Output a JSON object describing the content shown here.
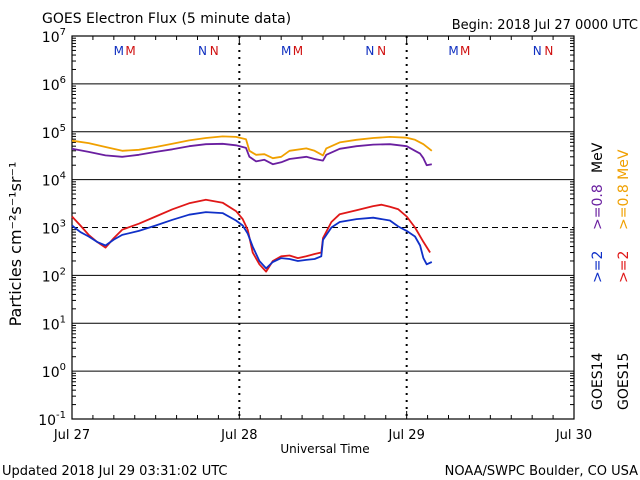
{
  "chart_data": {
    "type": "line",
    "title": "GOES Electron Flux (5 minute data)",
    "begin_label": "Begin: 2018 Jul 27 0000 UTC",
    "xlabel": "Universal Time",
    "ylabel": "Particles cm⁻²s⁻¹sr⁻¹",
    "y_scale": "log",
    "ylim": [
      0.1,
      10000000
    ],
    "y_ticks": [
      {
        "base": "10",
        "exp": "7"
      },
      {
        "base": "10",
        "exp": "6"
      },
      {
        "base": "10",
        "exp": "5"
      },
      {
        "base": "10",
        "exp": "4"
      },
      {
        "base": "10",
        "exp": "3"
      },
      {
        "base": "10",
        "exp": "2"
      },
      {
        "base": "10",
        "exp": "1"
      },
      {
        "base": "10",
        "exp": "0"
      },
      {
        "base": "10",
        "exp": "-1"
      }
    ],
    "x_unit": "days since 2018 Jul 27 0000 UTC",
    "xlim": [
      0,
      3
    ],
    "x_ticks": [
      "Jul 27",
      "Jul 28",
      "Jul 29",
      "Jul 30"
    ],
    "reference_level": 1000,
    "markers": [
      {
        "label": "M",
        "color": "#1030c0",
        "x": 0.28
      },
      {
        "label": "M",
        "color": "#d01010",
        "x": 0.35
      },
      {
        "label": "N",
        "color": "#1030c0",
        "x": 0.78
      },
      {
        "label": "N",
        "color": "#d01010",
        "x": 0.85
      },
      {
        "label": "M",
        "color": "#1030c0",
        "x": 1.28
      },
      {
        "label": "M",
        "color": "#d01010",
        "x": 1.35
      },
      {
        "label": "N",
        "color": "#1030c0",
        "x": 1.78
      },
      {
        "label": "N",
        "color": "#d01010",
        "x": 1.85
      },
      {
        "label": "M",
        "color": "#1030c0",
        "x": 2.28
      },
      {
        "label": "M",
        "color": "#d01010",
        "x": 2.35
      },
      {
        "label": "N",
        "color": "#1030c0",
        "x": 2.78
      },
      {
        "label": "N",
        "color": "#d01010",
        "x": 2.85
      }
    ],
    "series": [
      {
        "name": "GOES15 >=0.8 MeV",
        "color": "#f0a000",
        "points": [
          [
            0,
            65000
          ],
          [
            0.1,
            58000
          ],
          [
            0.2,
            48000
          ],
          [
            0.3,
            40000
          ],
          [
            0.4,
            42000
          ],
          [
            0.5,
            48000
          ],
          [
            0.6,
            56000
          ],
          [
            0.7,
            66000
          ],
          [
            0.8,
            74000
          ],
          [
            0.9,
            80000
          ],
          [
            0.98,
            78000
          ],
          [
            1.04,
            70000
          ],
          [
            1.06,
            40000
          ],
          [
            1.1,
            33000
          ],
          [
            1.15,
            34000
          ],
          [
            1.2,
            28000
          ],
          [
            1.25,
            30000
          ],
          [
            1.3,
            40000
          ],
          [
            1.4,
            45000
          ],
          [
            1.45,
            40000
          ],
          [
            1.5,
            32000
          ],
          [
            1.52,
            45000
          ],
          [
            1.6,
            60000
          ],
          [
            1.7,
            68000
          ],
          [
            1.8,
            74000
          ],
          [
            1.9,
            78000
          ],
          [
            2.0,
            75000
          ],
          [
            2.05,
            68000
          ],
          [
            2.1,
            55000
          ],
          [
            2.15,
            40000
          ]
        ]
      },
      {
        "name": "GOES14 >=0.8 MeV",
        "color": "#6a1fa0",
        "points": [
          [
            0,
            44000
          ],
          [
            0.1,
            38000
          ],
          [
            0.2,
            32000
          ],
          [
            0.3,
            30000
          ],
          [
            0.4,
            33000
          ],
          [
            0.5,
            38000
          ],
          [
            0.6,
            43000
          ],
          [
            0.7,
            50000
          ],
          [
            0.8,
            55000
          ],
          [
            0.9,
            56000
          ],
          [
            0.98,
            52000
          ],
          [
            1.04,
            46000
          ],
          [
            1.06,
            30000
          ],
          [
            1.1,
            24000
          ],
          [
            1.15,
            26000
          ],
          [
            1.2,
            21000
          ],
          [
            1.25,
            23000
          ],
          [
            1.3,
            27000
          ],
          [
            1.4,
            30000
          ],
          [
            1.45,
            27000
          ],
          [
            1.5,
            25000
          ],
          [
            1.52,
            33000
          ],
          [
            1.6,
            44000
          ],
          [
            1.7,
            50000
          ],
          [
            1.8,
            54000
          ],
          [
            1.9,
            55000
          ],
          [
            2.0,
            50000
          ],
          [
            2.05,
            40000
          ],
          [
            2.08,
            35000
          ],
          [
            2.1,
            28000
          ],
          [
            2.12,
            20000
          ],
          [
            2.15,
            21000
          ]
        ]
      },
      {
        "name": "GOES15 >=2 MeV",
        "color": "#e01818",
        "points": [
          [
            0,
            1700
          ],
          [
            0.05,
            1100
          ],
          [
            0.1,
            700
          ],
          [
            0.15,
            500
          ],
          [
            0.2,
            380
          ],
          [
            0.25,
            600
          ],
          [
            0.3,
            900
          ],
          [
            0.4,
            1200
          ],
          [
            0.5,
            1700
          ],
          [
            0.6,
            2400
          ],
          [
            0.7,
            3200
          ],
          [
            0.8,
            3800
          ],
          [
            0.9,
            3300
          ],
          [
            0.98,
            2200
          ],
          [
            1.02,
            1500
          ],
          [
            1.05,
            900
          ],
          [
            1.08,
            300
          ],
          [
            1.12,
            170
          ],
          [
            1.16,
            120
          ],
          [
            1.2,
            200
          ],
          [
            1.25,
            250
          ],
          [
            1.3,
            260
          ],
          [
            1.35,
            230
          ],
          [
            1.4,
            250
          ],
          [
            1.45,
            280
          ],
          [
            1.49,
            300
          ],
          [
            1.5,
            600
          ],
          [
            1.55,
            1300
          ],
          [
            1.6,
            1900
          ],
          [
            1.7,
            2300
          ],
          [
            1.8,
            2800
          ],
          [
            1.85,
            3000
          ],
          [
            1.9,
            2700
          ],
          [
            1.95,
            2400
          ],
          [
            2.0,
            1700
          ],
          [
            2.05,
            1000
          ],
          [
            2.1,
            500
          ],
          [
            2.14,
            300
          ]
        ]
      },
      {
        "name": "GOES14 >=2 MeV",
        "color": "#1030c8",
        "points": [
          [
            0,
            1100
          ],
          [
            0.05,
            800
          ],
          [
            0.1,
            650
          ],
          [
            0.15,
            500
          ],
          [
            0.2,
            420
          ],
          [
            0.25,
            560
          ],
          [
            0.3,
            700
          ],
          [
            0.4,
            850
          ],
          [
            0.5,
            1100
          ],
          [
            0.6,
            1450
          ],
          [
            0.7,
            1850
          ],
          [
            0.8,
            2100
          ],
          [
            0.9,
            2000
          ],
          [
            0.98,
            1400
          ],
          [
            1.02,
            1100
          ],
          [
            1.05,
            750
          ],
          [
            1.08,
            400
          ],
          [
            1.12,
            200
          ],
          [
            1.16,
            140
          ],
          [
            1.2,
            190
          ],
          [
            1.25,
            230
          ],
          [
            1.3,
            220
          ],
          [
            1.35,
            200
          ],
          [
            1.4,
            210
          ],
          [
            1.45,
            220
          ],
          [
            1.49,
            250
          ],
          [
            1.5,
            550
          ],
          [
            1.55,
            1000
          ],
          [
            1.6,
            1300
          ],
          [
            1.7,
            1500
          ],
          [
            1.8,
            1600
          ],
          [
            1.9,
            1400
          ],
          [
            1.95,
            1050
          ],
          [
            2.0,
            850
          ],
          [
            2.05,
            650
          ],
          [
            2.08,
            420
          ],
          [
            2.1,
            230
          ],
          [
            2.12,
            170
          ],
          [
            2.15,
            190
          ]
        ]
      }
    ],
    "legend": [
      {
        "label": ">=0.8 MeV",
        "color": "#f0a000",
        "group": "GOES15"
      },
      {
        "label": ">=0.8 MeV",
        "color": "#6a1fa0",
        "group": "GOES14"
      },
      {
        "label": ">=2",
        "color": "#e01818",
        "group": "GOES15"
      },
      {
        "label": ">=2",
        "color": "#1030c8",
        "group": "GOES14"
      }
    ],
    "legend_labels": {
      "goes14": "GOES14",
      "goes15": "GOES15",
      "mev_top": "MeV",
      "orange_mev": ">=0.8 MeV",
      "purple": ">=0.8",
      "red": ">=2",
      "blue": ">=2"
    }
  },
  "footer": {
    "updated": "Updated 2018 Jul 29 03:31:02 UTC",
    "source": "NOAA/SWPC Boulder, CO USA"
  }
}
